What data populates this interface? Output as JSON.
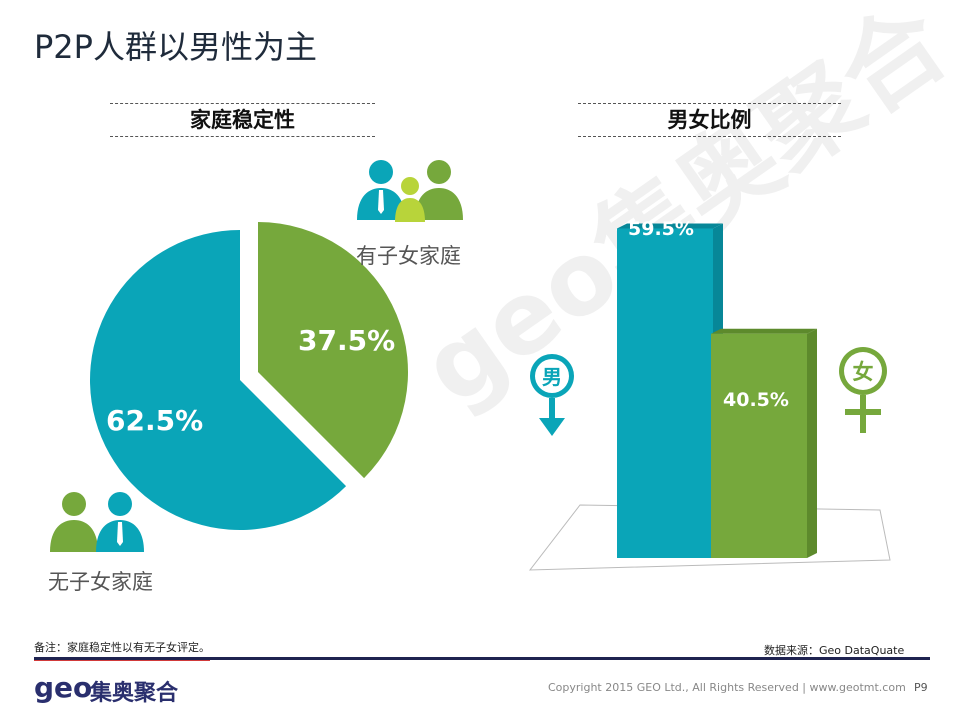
{
  "page": {
    "title": "P2P人群以男性为主",
    "watermark": "geo集奥聚合",
    "page_number": "P9"
  },
  "colors": {
    "teal": "#0aa5b8",
    "green": "#76a83c",
    "navy": "#1f2350",
    "red_accent": "#d23a3a"
  },
  "left_panel": {
    "heading": "家庭稳定性",
    "icons": [
      "family-group-icon",
      "couple-icon"
    ]
  },
  "right_panel": {
    "heading": "男女比例",
    "male_symbol": "男",
    "female_symbol": "女",
    "icons": [
      "male-symbol-icon",
      "female-symbol-icon"
    ]
  },
  "chart_data": [
    {
      "type": "pie",
      "title": "家庭稳定性",
      "slices": [
        {
          "label": "有子女家庭",
          "value": 37.5,
          "display": "37.5%",
          "color": "#76a83c"
        },
        {
          "label": "无子女家庭",
          "value": 62.5,
          "display": "62.5%",
          "color": "#0aa5b8"
        }
      ]
    },
    {
      "type": "bar",
      "title": "男女比例",
      "categories": [
        "男",
        "女"
      ],
      "values": [
        59.5,
        40.5
      ],
      "labels": [
        "59.5%",
        "40.5%"
      ],
      "colors": [
        "#0aa5b8",
        "#76a83c"
      ],
      "ylim": [
        0,
        65
      ]
    }
  ],
  "footer": {
    "note": "备注：家庭稳定性以有无子女评定。",
    "source": "数据来源：Geo DataQuate",
    "logo": "geo",
    "logo_cn": "集奥聚合",
    "copyright": "Copyright 2015 GEO Ltd., All Rights Reserved  |  www.geotmt.com"
  }
}
